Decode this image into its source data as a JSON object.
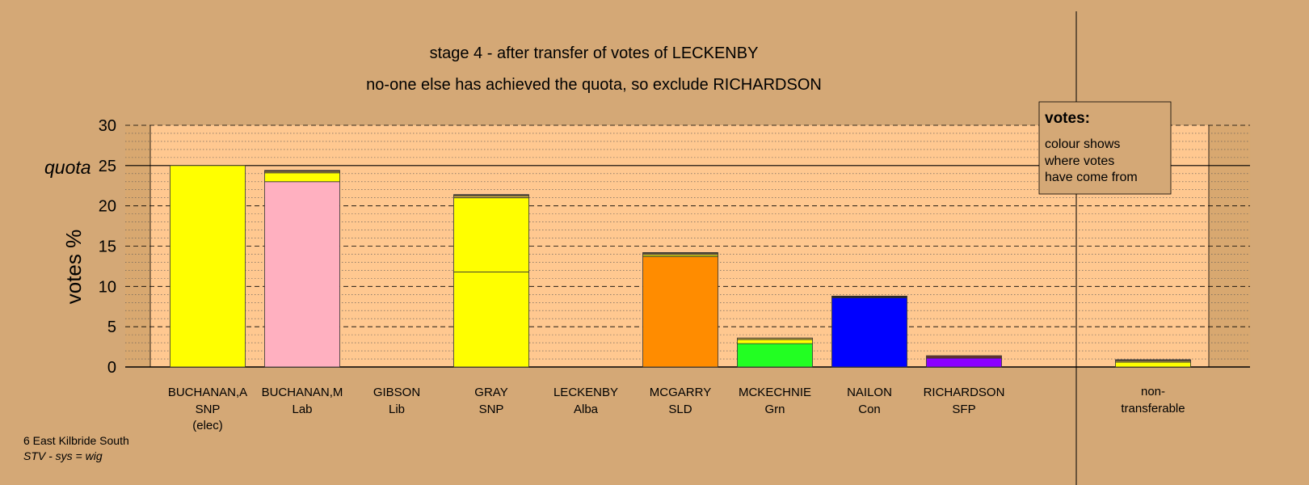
{
  "chart_data": {
    "type": "bar",
    "title": "stage 4 - after transfer of votes of LECKENBY",
    "subtitle": "no-one else has achieved the quota, so exclude RICHARDSON",
    "ylabel": "votes %",
    "quota_label": "quota",
    "quota": 25,
    "ylim": [
      0,
      30
    ],
    "yticks": [
      0,
      5,
      10,
      15,
      20,
      25,
      30
    ],
    "candidates": [
      {
        "name": "BUCHANAN,A",
        "party": "SNP",
        "note": "(elec)",
        "segments": [
          {
            "value": 25.0,
            "color": "#ffff00"
          }
        ]
      },
      {
        "name": "BUCHANAN,M",
        "party": "Lab",
        "note": "",
        "segments": [
          {
            "value": 23.0,
            "color": "#ffb0c0"
          },
          {
            "value": 1.1,
            "color": "#ffff00"
          },
          {
            "value": 0.2,
            "color": "#b89a40"
          },
          {
            "value": 0.1,
            "color": "#222222"
          }
        ]
      },
      {
        "name": "GIBSON",
        "party": "Lib",
        "note": "",
        "segments": []
      },
      {
        "name": "GRAY",
        "party": "SNP",
        "note": "",
        "segments": [
          {
            "value": 11.8,
            "color": "#ffff00"
          },
          {
            "value": 9.2,
            "color": "#ffff00"
          },
          {
            "value": 0.3,
            "color": "#b89a40"
          },
          {
            "value": 0.1,
            "color": "#222222"
          }
        ]
      },
      {
        "name": "LECKENBY",
        "party": "Alba",
        "note": "",
        "segments": []
      },
      {
        "name": "MCGARRY",
        "party": "SLD",
        "note": "",
        "segments": [
          {
            "value": 13.7,
            "color": "#ff8c00"
          },
          {
            "value": 0.2,
            "color": "#ffff00"
          },
          {
            "value": 0.2,
            "color": "#b89a40"
          },
          {
            "value": 0.1,
            "color": "#222222"
          }
        ]
      },
      {
        "name": "MCKECHNIE",
        "party": "Grn",
        "note": "",
        "segments": [
          {
            "value": 2.9,
            "color": "#22ff22"
          },
          {
            "value": 0.5,
            "color": "#ffff00"
          },
          {
            "value": 0.2,
            "color": "#b89a40"
          }
        ]
      },
      {
        "name": "NAILON",
        "party": "Con",
        "note": "",
        "segments": [
          {
            "value": 8.6,
            "color": "#0000ff"
          },
          {
            "value": 0.2,
            "color": "#222222"
          }
        ]
      },
      {
        "name": "RICHARDSON",
        "party": "SFP",
        "note": "",
        "segments": [
          {
            "value": 1.1,
            "color": "#8b00ff"
          },
          {
            "value": 0.3,
            "color": "#6b3030"
          }
        ]
      }
    ],
    "nontransferable": {
      "label_line1": "non-",
      "label_line2": "transferable",
      "segments": [
        {
          "value": 0.6,
          "color": "#ffff00"
        },
        {
          "value": 0.2,
          "color": "#b89a40"
        },
        {
          "value": 0.1,
          "color": "#222222"
        }
      ]
    },
    "legend": {
      "title": "votes:",
      "lines": [
        "colour shows",
        "where votes",
        "have come from"
      ],
      "position": "top-right"
    },
    "grid": true
  },
  "footer": {
    "line1": "6 East Kilbride South",
    "line2": "STV - sys = wig"
  },
  "colors": {
    "background": "#d4a876",
    "plot_area": "#ffc890",
    "shaded_margin": "#c8a070"
  }
}
